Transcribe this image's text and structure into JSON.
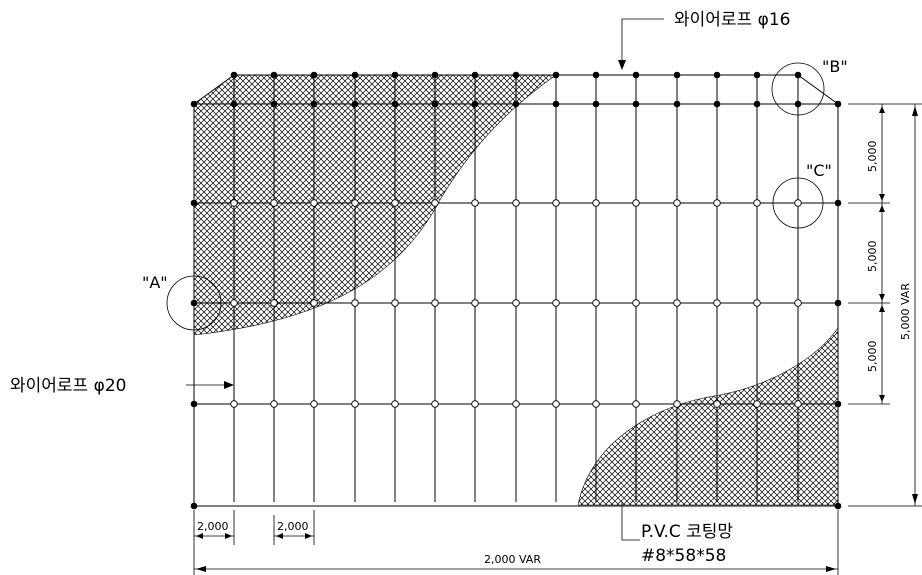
{
  "drawing": {
    "callouts": {
      "a": "\"A\"",
      "b": "\"B\"",
      "c": "\"C\""
    },
    "labels": {
      "wire_rope_16": "와이어로프 φ16",
      "wire_rope_20": "와이어로프 φ20",
      "pvc_net": "P.V.C 코팅망",
      "pvc_net_spec": "#8*58*58"
    },
    "dimensions": {
      "span_1": "2,000",
      "span_2": "2,000",
      "total_width": "2,000 VAR",
      "row_1": "5,000",
      "row_2": "5,000",
      "row_3": "5,000",
      "total_height": "5,000 VAR"
    }
  }
}
